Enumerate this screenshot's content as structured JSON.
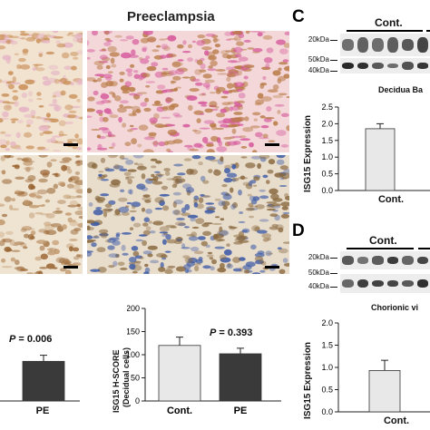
{
  "panel_a_title": "Preeclampsia",
  "panel_letters": {
    "c": "C",
    "d": "D"
  },
  "micrographs": [
    {
      "id": "top-left",
      "colors": [
        "#f2e2d0",
        "#c99059",
        "#e6b7c5"
      ]
    },
    {
      "id": "top-right",
      "colors": [
        "#f3d7d9",
        "#b87a45",
        "#d65c9c"
      ]
    },
    {
      "id": "bottom-left",
      "colors": [
        "#efe4d2",
        "#9a6533",
        "#c29a70"
      ]
    },
    {
      "id": "bottom-right",
      "colors": [
        "#e8dccb",
        "#8a6a40",
        "#3c5aa6"
      ]
    }
  ],
  "chart_b_left": {
    "p_label": "P",
    "p_value": "= 0.006",
    "x_label": "PE"
  },
  "chart_b_right": {
    "ylabel_line1": "ISG15 H-SCORE",
    "ylabel_line2": "(Decidual cells)",
    "p_label": "P",
    "p_value": "= 0.393"
  },
  "blot_c": {
    "group_label": "Cont.",
    "markers": [
      "20kDa",
      "50kDa",
      "40kDa"
    ],
    "subtitle": "Decidua Ba"
  },
  "blot_d": {
    "group_label": "Cont.",
    "markers": [
      "20kDa",
      "50kDa",
      "40kDa"
    ],
    "subtitle": "Chorionic vi"
  },
  "chart_data": [
    {
      "type": "bar",
      "id": "B-left",
      "categories": [
        "PE"
      ],
      "values": [
        78
      ],
      "errors": [
        12
      ],
      "ylim": [
        0,
        200
      ],
      "colors": [
        "#3a3a3a"
      ]
    },
    {
      "type": "bar",
      "id": "B-right",
      "categories": [
        "Cont.",
        "PE"
      ],
      "values": [
        120,
        102
      ],
      "errors": [
        18,
        12
      ],
      "ylim": [
        0,
        200
      ],
      "yticks": [
        "0",
        "50",
        "100",
        "150",
        "200"
      ],
      "ylabel": "ISG15 H-SCORE (Decidual cells)",
      "colors": [
        "#e8e8e8",
        "#3a3a3a"
      ]
    },
    {
      "type": "bar",
      "id": "C",
      "categories": [
        "Cont."
      ],
      "values": [
        1.85
      ],
      "errors": [
        0.15
      ],
      "ylim": [
        0,
        2.5
      ],
      "yticks": [
        "0.0",
        "0.5",
        "1.0",
        "1.5",
        "2.0",
        "2.5"
      ],
      "ylabel": "ISG15 Expression",
      "colors": [
        "#e8e8e8"
      ]
    },
    {
      "type": "bar",
      "id": "D",
      "categories": [
        "Cont."
      ],
      "values": [
        0.93
      ],
      "errors": [
        0.23
      ],
      "ylim": [
        0,
        2.0
      ],
      "yticks": [
        "0.0",
        "0.5",
        "1.0",
        "1.5",
        "2.0"
      ],
      "ylabel": "ISG15 Expression",
      "colors": [
        "#e8e8e8"
      ]
    }
  ]
}
